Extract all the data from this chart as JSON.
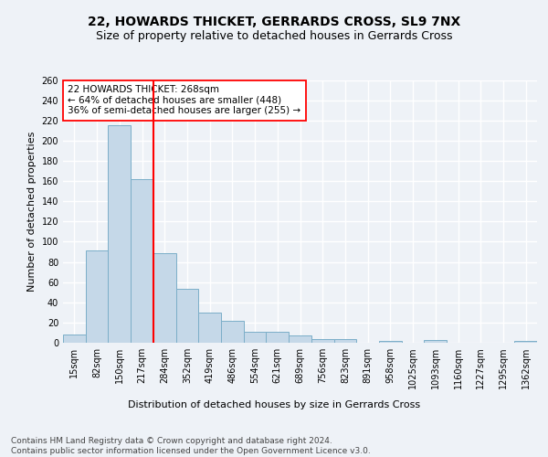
{
  "title": "22, HOWARDS THICKET, GERRARDS CROSS, SL9 7NX",
  "subtitle": "Size of property relative to detached houses in Gerrards Cross",
  "xlabel": "Distribution of detached houses by size in Gerrards Cross",
  "ylabel": "Number of detached properties",
  "bin_labels": [
    "15sqm",
    "82sqm",
    "150sqm",
    "217sqm",
    "284sqm",
    "352sqm",
    "419sqm",
    "486sqm",
    "554sqm",
    "621sqm",
    "689sqm",
    "756sqm",
    "823sqm",
    "891sqm",
    "958sqm",
    "1025sqm",
    "1093sqm",
    "1160sqm",
    "1227sqm",
    "1295sqm",
    "1362sqm"
  ],
  "bar_heights": [
    8,
    91,
    215,
    162,
    89,
    53,
    30,
    22,
    11,
    11,
    7,
    4,
    4,
    0,
    2,
    0,
    3,
    0,
    0,
    0,
    2
  ],
  "bar_color": "#c5d8e8",
  "bar_edge_color": "#7baec8",
  "vline_x": 3.5,
  "vline_color": "red",
  "annotation_text": "22 HOWARDS THICKET: 268sqm\n← 64% of detached houses are smaller (448)\n36% of semi-detached houses are larger (255) →",
  "annotation_box_color": "white",
  "annotation_box_edgecolor": "red",
  "ylim": [
    0,
    260
  ],
  "yticks": [
    0,
    20,
    40,
    60,
    80,
    100,
    120,
    140,
    160,
    180,
    200,
    220,
    240,
    260
  ],
  "footer_text": "Contains HM Land Registry data © Crown copyright and database right 2024.\nContains public sector information licensed under the Open Government Licence v3.0.",
  "background_color": "#eef2f7",
  "grid_color": "#ffffff",
  "title_fontsize": 10,
  "subtitle_fontsize": 9,
  "axis_label_fontsize": 8,
  "tick_fontsize": 7,
  "footer_fontsize": 6.5,
  "annotation_fontsize": 7.5
}
